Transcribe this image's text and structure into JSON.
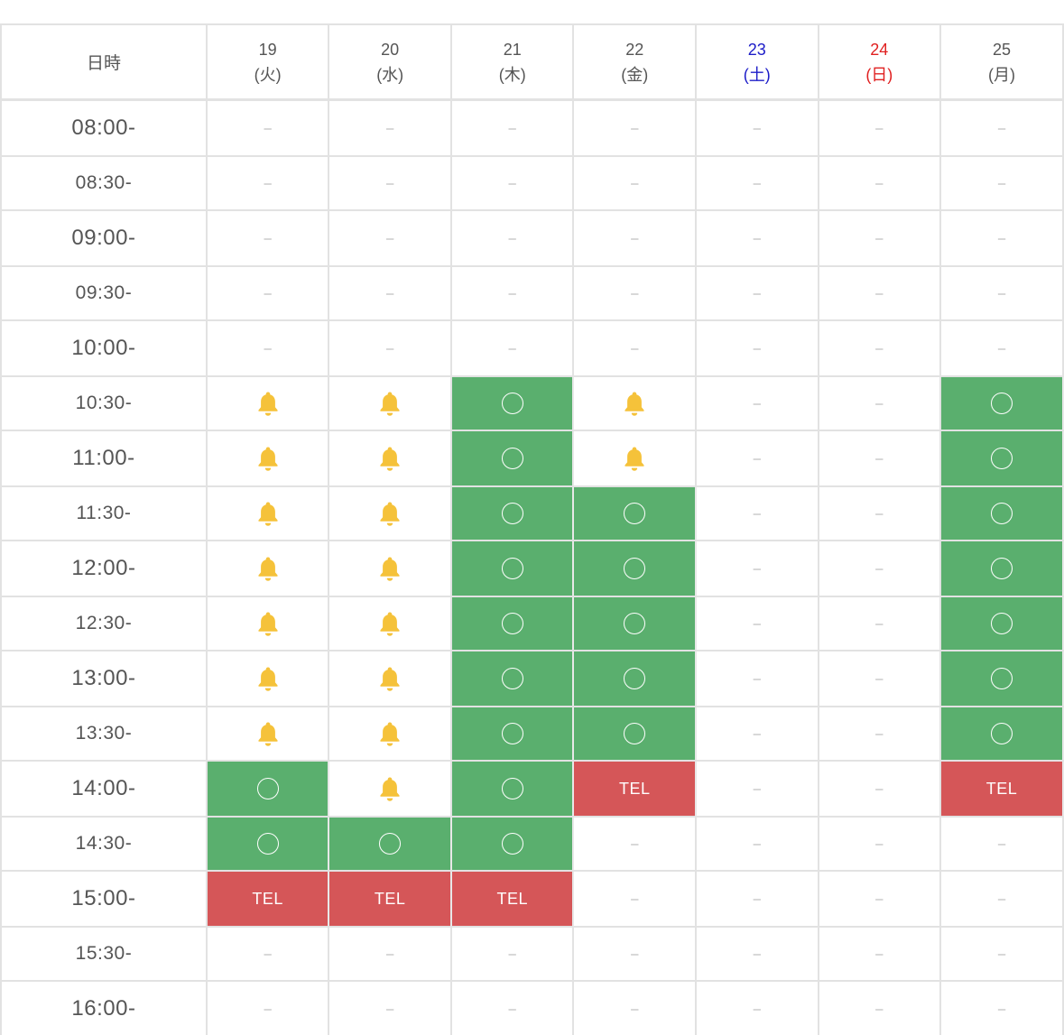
{
  "header": {
    "time_label": "日時",
    "days": [
      {
        "date": "19",
        "weekday": "(火)",
        "kind": "weekday"
      },
      {
        "date": "20",
        "weekday": "(水)",
        "kind": "weekday"
      },
      {
        "date": "21",
        "weekday": "(木)",
        "kind": "weekday"
      },
      {
        "date": "22",
        "weekday": "(金)",
        "kind": "weekday"
      },
      {
        "date": "23",
        "weekday": "(土)",
        "kind": "sat"
      },
      {
        "date": "24",
        "weekday": "(日)",
        "kind": "sun"
      },
      {
        "date": "25",
        "weekday": "(月)",
        "kind": "weekday"
      }
    ]
  },
  "legend": {
    "unavailable": "–",
    "tel": "TEL",
    "open_icon": "circle-icon",
    "waitlist_icon": "bell-icon"
  },
  "colors": {
    "open": "#5aaf6e",
    "tel": "#d55658",
    "bell": "#f5c23a",
    "saturday": "#1c1cc8",
    "sunday": "#e02020"
  },
  "slots": [
    {
      "time": "08:00-",
      "cells": [
        "none",
        "none",
        "none",
        "none",
        "none",
        "none",
        "none"
      ]
    },
    {
      "time": "08:30-",
      "cells": [
        "none",
        "none",
        "none",
        "none",
        "none",
        "none",
        "none"
      ]
    },
    {
      "time": "09:00-",
      "cells": [
        "none",
        "none",
        "none",
        "none",
        "none",
        "none",
        "none"
      ]
    },
    {
      "time": "09:30-",
      "cells": [
        "none",
        "none",
        "none",
        "none",
        "none",
        "none",
        "none"
      ]
    },
    {
      "time": "10:00-",
      "cells": [
        "none",
        "none",
        "none",
        "none",
        "none",
        "none",
        "none"
      ]
    },
    {
      "time": "10:30-",
      "cells": [
        "bell",
        "bell",
        "open",
        "bell",
        "none",
        "none",
        "open"
      ]
    },
    {
      "time": "11:00-",
      "cells": [
        "bell",
        "bell",
        "open",
        "bell",
        "none",
        "none",
        "open"
      ]
    },
    {
      "time": "11:30-",
      "cells": [
        "bell",
        "bell",
        "open",
        "open",
        "none",
        "none",
        "open"
      ]
    },
    {
      "time": "12:00-",
      "cells": [
        "bell",
        "bell",
        "open",
        "open",
        "none",
        "none",
        "open"
      ]
    },
    {
      "time": "12:30-",
      "cells": [
        "bell",
        "bell",
        "open",
        "open",
        "none",
        "none",
        "open"
      ]
    },
    {
      "time": "13:00-",
      "cells": [
        "bell",
        "bell",
        "open",
        "open",
        "none",
        "none",
        "open"
      ]
    },
    {
      "time": "13:30-",
      "cells": [
        "bell",
        "bell",
        "open",
        "open",
        "none",
        "none",
        "open"
      ]
    },
    {
      "time": "14:00-",
      "cells": [
        "open",
        "bell",
        "open",
        "tel",
        "none",
        "none",
        "tel"
      ]
    },
    {
      "time": "14:30-",
      "cells": [
        "open",
        "open",
        "open",
        "none",
        "none",
        "none",
        "none"
      ]
    },
    {
      "time": "15:00-",
      "cells": [
        "tel",
        "tel",
        "tel",
        "none",
        "none",
        "none",
        "none"
      ]
    },
    {
      "time": "15:30-",
      "cells": [
        "none",
        "none",
        "none",
        "none",
        "none",
        "none",
        "none"
      ]
    },
    {
      "time": "16:00-",
      "cells": [
        "none",
        "none",
        "none",
        "none",
        "none",
        "none",
        "none"
      ]
    }
  ]
}
